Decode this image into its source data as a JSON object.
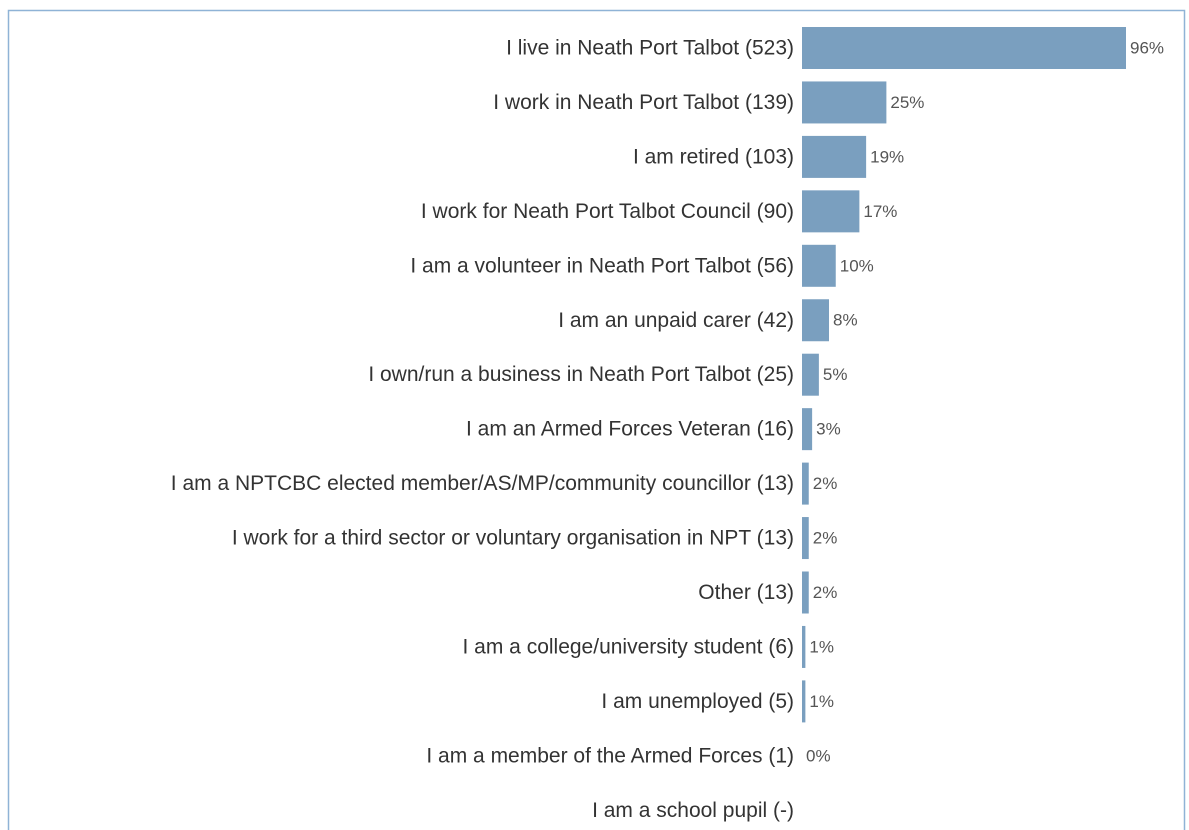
{
  "chart_data": {
    "type": "bar",
    "orientation": "horizontal",
    "categories": [
      "I live in Neath Port Talbot (523)",
      "I work in Neath Port Talbot (139)",
      "I am retired (103)",
      "I work for Neath Port Talbot Council (90)",
      "I am a volunteer in Neath Port Talbot (56)",
      "I am an unpaid carer (42)",
      "I own/run a business in Neath Port Talbot (25)",
      "I am an Armed Forces Veteran (16)",
      "I am a NPTCBC elected member/AS/MP/community councillor (13)",
      "I work for a third sector or voluntary organisation in NPT (13)",
      "Other (13)",
      "I am a college/university student (6)",
      "I am unemployed (5)",
      "I am a member of the Armed Forces (1)",
      "I am a school pupil (-)"
    ],
    "values": [
      96,
      25,
      19,
      17,
      10,
      8,
      5,
      3,
      2,
      2,
      2,
      1,
      1,
      0,
      null
    ],
    "value_labels": [
      "96%",
      "25%",
      "19%",
      "17%",
      "10%",
      "8%",
      "5%",
      "3%",
      "2%",
      "2%",
      "2%",
      "1%",
      "1%",
      "0%",
      null
    ],
    "color": "#7a9fbf"
  }
}
